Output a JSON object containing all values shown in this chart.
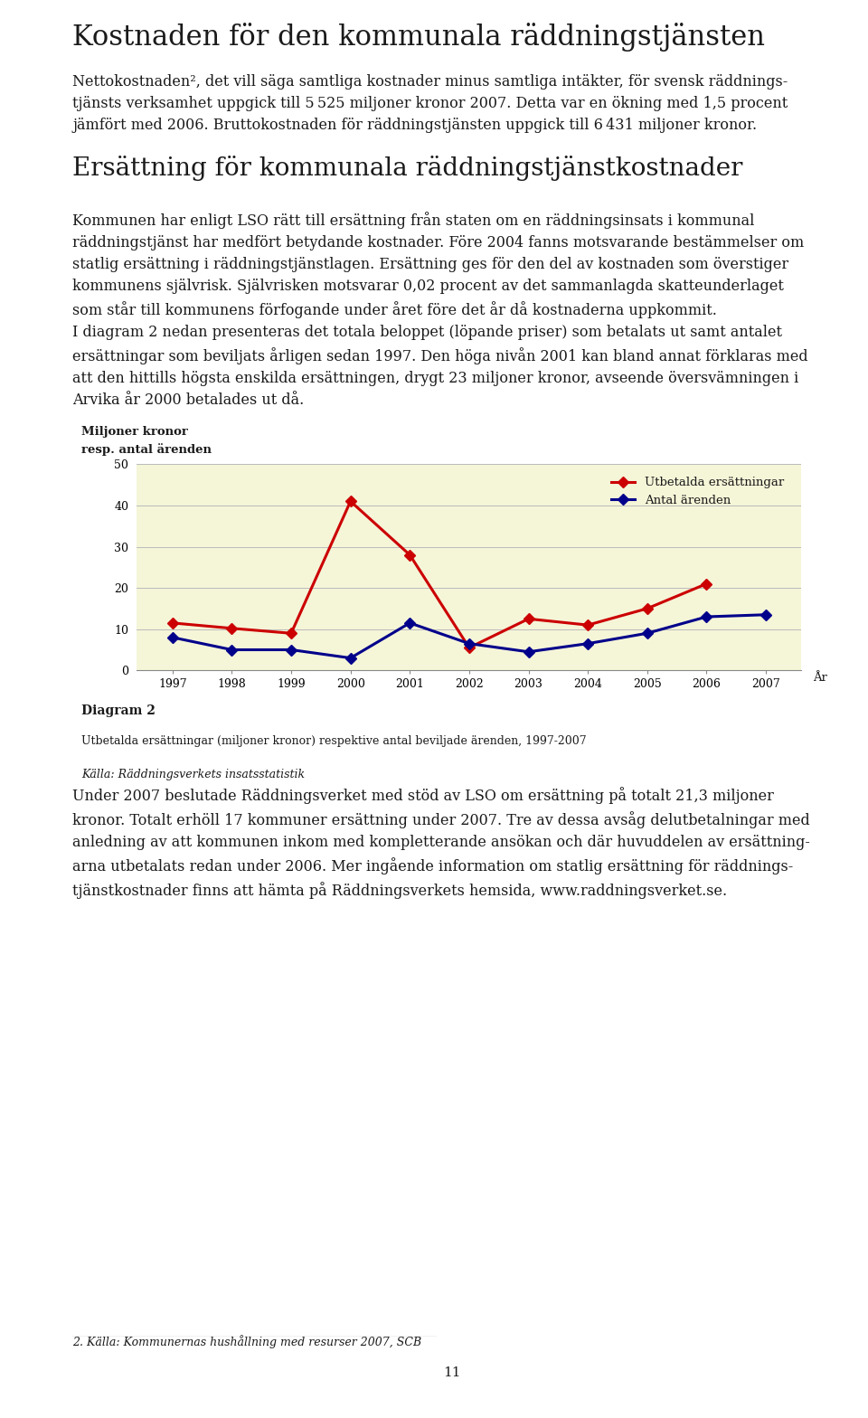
{
  "page_title": "Kostnaden för den kommunala räddningstjänsten",
  "para1_lines": [
    "Nettokostnaden², det vill säga samtliga kostnader minus samtliga intäkter, för svensk räddnings-",
    "tjänsts verksamhet uppgick till 5 525 miljoner kronor 2007. Detta var en ökning med 1,5 procent",
    "jämfört med 2006. Bruttokostnaden för räddningstjänsten uppgick till 6 431 miljoner kronor."
  ],
  "section_title": "Ersättning för kommunala räddningstjänstkostnader",
  "para2_lines": [
    "Kommunen har enligt LSO rätt till ersättning från staten om en räddningsinsats i kommunal",
    "räddningstjänst har medfört betydande kostnader. Före 2004 fanns motsvarande bestämmelser om",
    "statlig ersättning i räddningstjänstlagen. Ersättning ges för den del av kostnaden som överstiger",
    "kommunens självrisk. Självrisken motsvarar 0,02 procent av det sammanlagda skatteunderlaget",
    "som står till kommunens förfogande under året före det år då kostnaderna uppkommit."
  ],
  "para3_lines": [
    "I diagram 2 nedan presenteras det totala beloppet (löpande priser) som betalats ut samt antalet",
    "ersättningar som beviljats årligen sedan 1997. Den höga nivån 2001 kan bland annat förklaras med",
    "att den hittills högsta enskilda ersättningen, drygt 23 miljoner kronor, avseende översvämningen i",
    "Arvika år 2000 betalades ut då."
  ],
  "chart_ylabel1": "Miljoner kronor",
  "chart_ylabel2": "resp. antal ärenden",
  "chart_xlabel": "År",
  "years": [
    1997,
    1998,
    1999,
    2000,
    2001,
    2002,
    2003,
    2004,
    2005,
    2006,
    2007
  ],
  "red_years": [
    1997,
    1998,
    1999,
    2000,
    2001,
    2002,
    2003,
    2004,
    2005,
    2006
  ],
  "red_vals": [
    11.5,
    10.2,
    9.0,
    41.0,
    28.0,
    5.5,
    12.5,
    11.0,
    15.0,
    21.0
  ],
  "blue_years": [
    1997,
    1998,
    1999,
    2000,
    2001,
    2002,
    2003,
    2004,
    2005,
    2006,
    2007
  ],
  "blue_vals": [
    8.0,
    5.0,
    5.0,
    3.0,
    11.5,
    6.5,
    4.5,
    6.5,
    9.0,
    13.0,
    13.5
  ],
  "ylim": [
    0,
    50
  ],
  "yticks": [
    0,
    10,
    20,
    30,
    40,
    50
  ],
  "red_color": "#cc0000",
  "blue_color": "#00008b",
  "chart_bg": "#f5f5d8",
  "legend_utbetalda": "Utbetalda ersättningar",
  "legend_antal": "Antal ärenden",
  "diagram_label": "Diagram 2",
  "caption1": "Utbetalda ersättningar (miljoner kronor) respektive antal beviljade ärenden, 1997-2007",
  "caption2": "Källa: Räddningsverkets insatsstatistik",
  "para4_lines": [
    "Under 2007 beslutade Räddningsverket med stöd av LSO om ersättning på totalt 21,3 miljoner",
    "kronor. Totalt erhöll 17 kommuner ersättning under 2007. Tre av dessa avsåg delutbetalningar med",
    "anledning av att kommunen inkom med kompletterande ansökan och där huvuddelen av ersättning-",
    "arna utbetalats redan under 2006. Mer ingående information om statlig ersättning för räddnings-",
    "tjänstkostnader finns att hämta på Räddningsverkets hemsida, www.raddningsverket.se."
  ],
  "footnote": "2. Källa: Kommunernas hushållning med resurser 2007, SCB",
  "page_number": "11",
  "bg_color": "#ffffff",
  "text_color": "#1a1a1a",
  "title_fontsize": 22,
  "section_fontsize": 20,
  "body_fontsize": 11.5,
  "small_fontsize": 9.5
}
